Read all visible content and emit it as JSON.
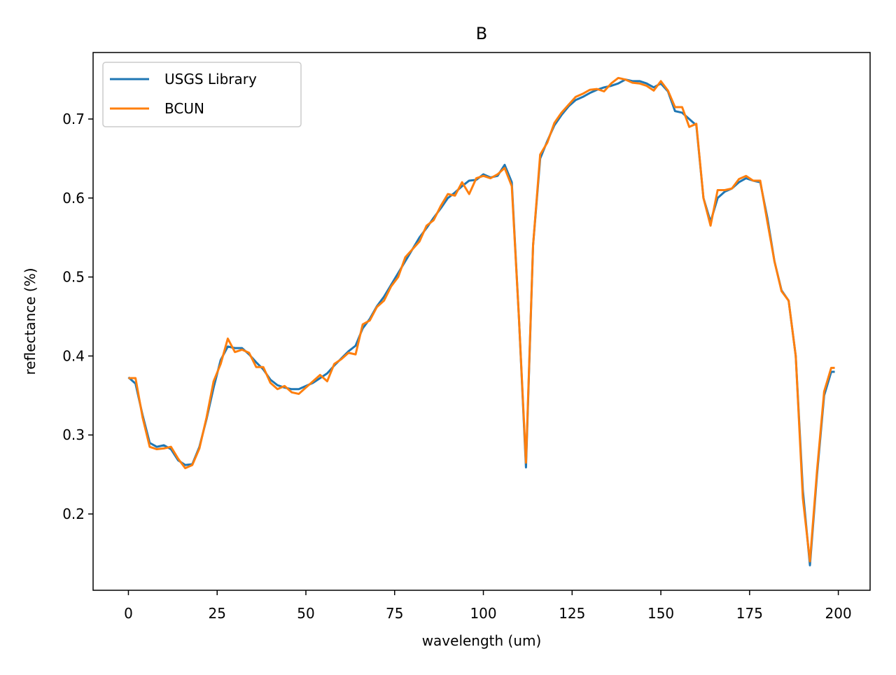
{
  "chart_data": {
    "type": "line",
    "title": "B",
    "x_label": "wavelength (um)",
    "y_label": "reflectance (%)",
    "x": [
      0,
      2,
      4,
      6,
      8,
      10,
      12,
      14,
      16,
      18,
      20,
      22,
      24,
      26,
      28,
      30,
      32,
      34,
      36,
      38,
      40,
      42,
      44,
      46,
      48,
      50,
      52,
      54,
      56,
      58,
      60,
      62,
      64,
      66,
      68,
      70,
      72,
      74,
      76,
      78,
      80,
      82,
      84,
      86,
      88,
      90,
      92,
      94,
      96,
      98,
      100,
      102,
      104,
      106,
      108,
      110,
      112,
      114,
      116,
      118,
      120,
      122,
      124,
      126,
      128,
      130,
      132,
      134,
      136,
      138,
      140,
      142,
      144,
      146,
      148,
      150,
      152,
      154,
      156,
      158,
      160,
      162,
      164,
      166,
      168,
      170,
      172,
      174,
      176,
      178,
      180,
      182,
      184,
      186,
      188,
      190,
      192,
      194,
      196,
      198,
      199
    ],
    "series": [
      {
        "name": "USGS Library",
        "color": "#1f77b4",
        "values": [
          0.373,
          0.365,
          0.325,
          0.29,
          0.285,
          0.287,
          0.282,
          0.268,
          0.262,
          0.263,
          0.285,
          0.32,
          0.36,
          0.395,
          0.412,
          0.41,
          0.41,
          0.402,
          0.392,
          0.383,
          0.37,
          0.363,
          0.36,
          0.358,
          0.358,
          0.362,
          0.366,
          0.372,
          0.378,
          0.388,
          0.397,
          0.406,
          0.413,
          0.435,
          0.447,
          0.463,
          0.475,
          0.49,
          0.505,
          0.52,
          0.535,
          0.55,
          0.562,
          0.575,
          0.587,
          0.6,
          0.607,
          0.615,
          0.622,
          0.623,
          0.63,
          0.626,
          0.628,
          0.642,
          0.62,
          0.45,
          0.259,
          0.54,
          0.65,
          0.672,
          0.692,
          0.705,
          0.716,
          0.724,
          0.728,
          0.733,
          0.737,
          0.74,
          0.742,
          0.745,
          0.75,
          0.748,
          0.748,
          0.745,
          0.74,
          0.745,
          0.735,
          0.71,
          0.708,
          0.7,
          0.692,
          0.6,
          0.57,
          0.6,
          0.608,
          0.612,
          0.62,
          0.625,
          0.622,
          0.62,
          0.575,
          0.52,
          0.483,
          0.47,
          0.4,
          0.23,
          0.135,
          0.25,
          0.35,
          0.38,
          0.38
        ]
      },
      {
        "name": "BCUN",
        "color": "#ff7f0e",
        "values": [
          0.372,
          0.372,
          0.322,
          0.285,
          0.282,
          0.283,
          0.285,
          0.27,
          0.258,
          0.262,
          0.283,
          0.322,
          0.368,
          0.39,
          0.422,
          0.405,
          0.408,
          0.404,
          0.386,
          0.386,
          0.366,
          0.358,
          0.362,
          0.354,
          0.352,
          0.36,
          0.368,
          0.376,
          0.368,
          0.39,
          0.396,
          0.404,
          0.402,
          0.44,
          0.445,
          0.462,
          0.47,
          0.488,
          0.5,
          0.525,
          0.535,
          0.545,
          0.565,
          0.572,
          0.59,
          0.605,
          0.603,
          0.62,
          0.605,
          0.625,
          0.628,
          0.625,
          0.63,
          0.638,
          0.615,
          0.45,
          0.265,
          0.54,
          0.655,
          0.67,
          0.695,
          0.708,
          0.718,
          0.728,
          0.732,
          0.737,
          0.738,
          0.735,
          0.745,
          0.752,
          0.75,
          0.746,
          0.745,
          0.742,
          0.736,
          0.748,
          0.736,
          0.715,
          0.715,
          0.69,
          0.694,
          0.6,
          0.565,
          0.61,
          0.61,
          0.612,
          0.624,
          0.628,
          0.622,
          0.622,
          0.57,
          0.52,
          0.482,
          0.47,
          0.4,
          0.22,
          0.14,
          0.255,
          0.355,
          0.385,
          0.385
        ]
      }
    ],
    "xlim": [
      -9.95,
      208.95
    ],
    "ylim": [
      0.1034,
      0.7842
    ],
    "xticks": [
      0,
      25,
      50,
      75,
      100,
      125,
      150,
      175,
      200
    ],
    "yticks": [
      0.2,
      0.3,
      0.4,
      0.5,
      0.6,
      0.7
    ],
    "legend": "upper left"
  }
}
